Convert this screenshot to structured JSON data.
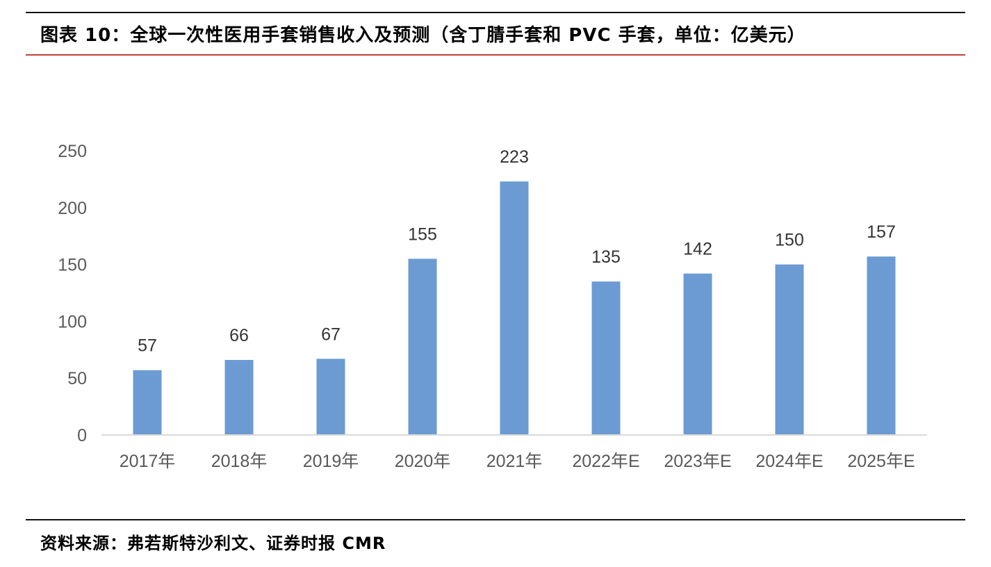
{
  "header": {
    "title": "图表 10：全球一次性医用手套销售收入及预测（含丁腈手套和 PVC 手套，单位：亿美元）"
  },
  "footer": {
    "source": "资料来源：弗若斯特沙利文、证券时报 CMR"
  },
  "colors": {
    "bar": "#6b9bd2",
    "axis_text": "#595959",
    "label_text": "#333333",
    "baseline": "#d9d9d9",
    "red_rule": "#c0413b"
  },
  "chart_data": {
    "type": "bar",
    "title": "",
    "xlabel": "",
    "ylabel": "",
    "ylim": [
      0,
      250
    ],
    "yticks": [
      "0",
      "50",
      "100",
      "150",
      "200",
      "250"
    ],
    "grid": false,
    "categories": [
      "2017年",
      "2018年",
      "2019年",
      "2020年",
      "2021年",
      "2022年E",
      "2023年E",
      "2024年E",
      "2025年E"
    ],
    "values": [
      57,
      66,
      67,
      155,
      223,
      135,
      142,
      150,
      157
    ],
    "data_labels": [
      "57",
      "66",
      "67",
      "155",
      "223",
      "135",
      "142",
      "150",
      "157"
    ]
  }
}
